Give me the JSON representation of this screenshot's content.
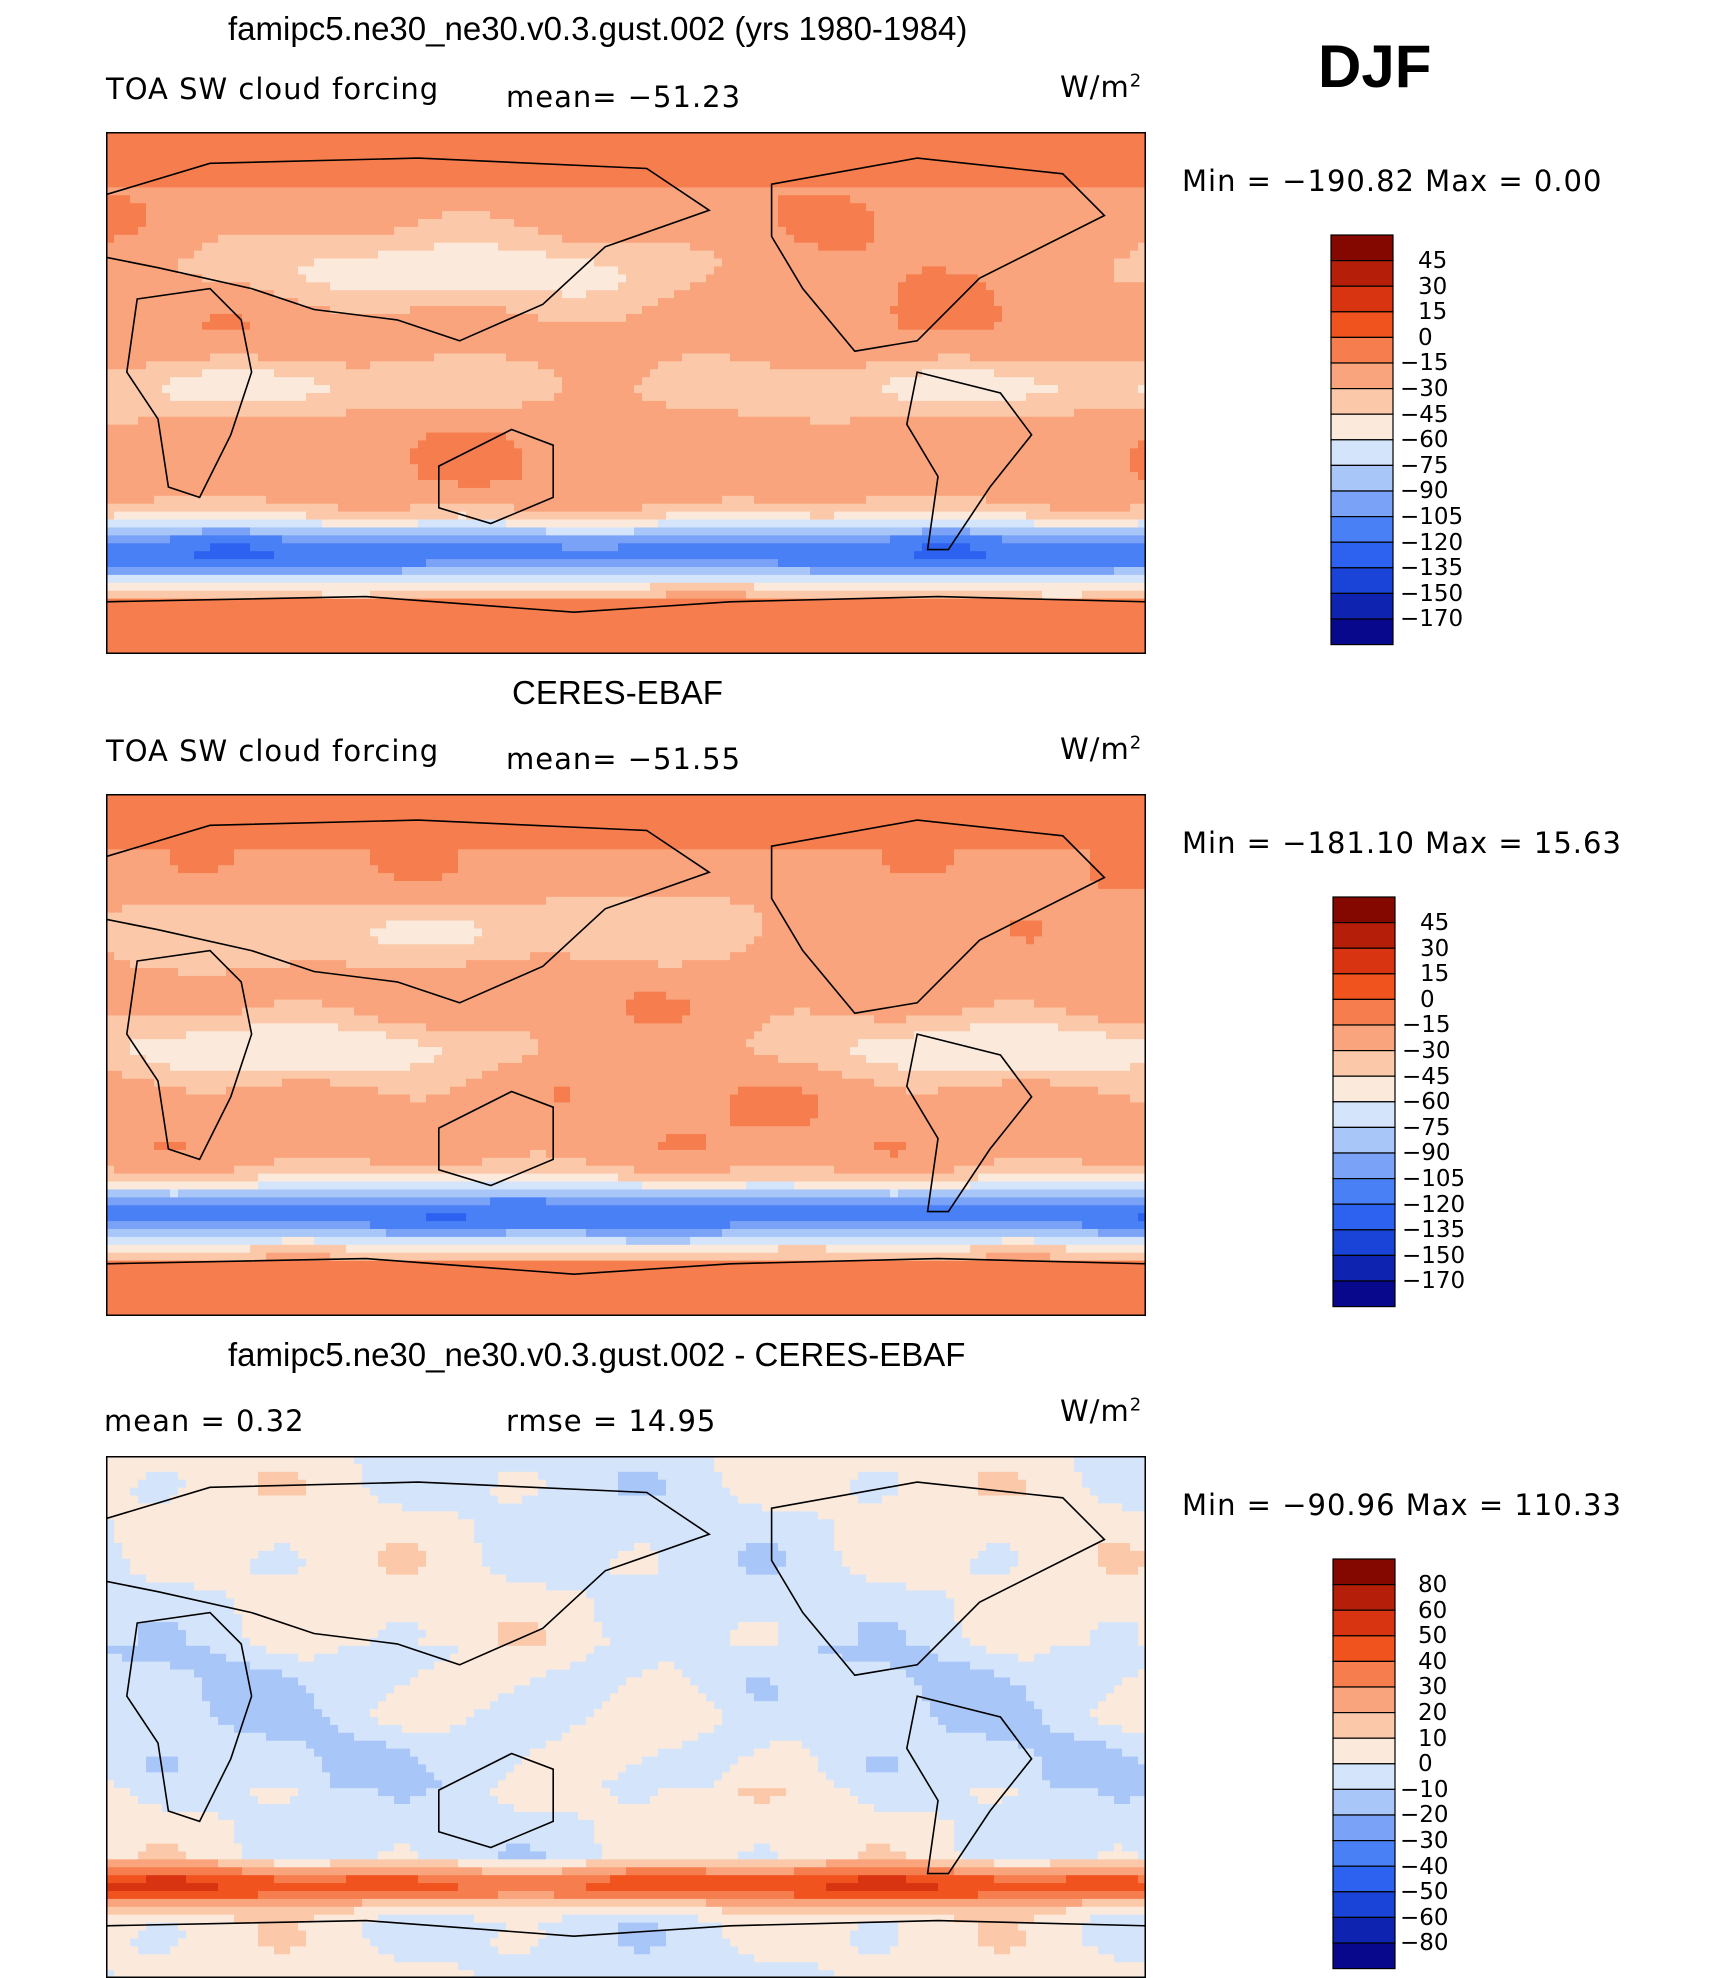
{
  "season": "DJF",
  "unit_text": "W/m",
  "unit_sup": "2",
  "colors": {
    "field": [
      "#08088c",
      "#0e24b0",
      "#1a44d8",
      "#2c62ef",
      "#4a80f5",
      "#7aa3f7",
      "#a9c6f8",
      "#d4e5fb",
      "#fbeadb",
      "#fbc9a9",
      "#f9a47c",
      "#f67d4e",
      "#f1531f",
      "#d93412",
      "#b51e09",
      "#850800"
    ],
    "diff": [
      "#08088c",
      "#0e24b0",
      "#1a44d8",
      "#2c62ef",
      "#4a80f5",
      "#7aa3f7",
      "#a9c6f8",
      "#d4e5fb",
      "#fbeadb",
      "#fbc9a9",
      "#f9a47c",
      "#f67d4e",
      "#f1531f",
      "#d93412",
      "#b51e09",
      "#850800"
    ]
  },
  "panels": [
    {
      "title": "famipc5.ne30_ne30.v0.3.gust.002 (yrs 1980-1984)",
      "variable": "TOA SW cloud forcing",
      "mean_text": "mean=  −51.23",
      "minmax_text": "Min  =  −190.82  Max  =     0.00"
    },
    {
      "title": "CERES-EBAF",
      "variable": "TOA SW cloud forcing",
      "mean_text": "mean=  −51.55",
      "minmax_text": "Min  =  −181.10  Max  =   15.63"
    },
    {
      "title": "famipc5.ne30_ne30.v0.3.gust.002 - CERES-EBAF",
      "mean_text": "mean  =     0.32",
      "rmse_text": "rmse  =    14.95",
      "minmax_text": "Min  =  −90.96  Max  =  110.33"
    }
  ],
  "chart_data": [
    {
      "type": "heatmap",
      "title": "famipc5.ne30_ne30.v0.3.gust.002 (yrs 1980-1984)",
      "variable": "TOA SW cloud forcing",
      "units": "W/m2",
      "mean": -51.23,
      "min": -190.82,
      "max": 0.0,
      "levels": [
        "45",
        "30",
        "15",
        "0",
        "−15",
        "−30",
        "−45",
        "−60",
        "−75",
        "−90",
        "−105",
        "−120",
        "−135",
        "−150",
        "−170"
      ]
    },
    {
      "type": "heatmap",
      "title": "CERES-EBAF",
      "variable": "TOA SW cloud forcing",
      "units": "W/m2",
      "mean": -51.55,
      "min": -181.1,
      "max": 15.63,
      "levels": [
        "45",
        "30",
        "15",
        "0",
        "−15",
        "−30",
        "−45",
        "−60",
        "−75",
        "−90",
        "−105",
        "−120",
        "−135",
        "−150",
        "−170"
      ]
    },
    {
      "type": "heatmap",
      "title": "famipc5.ne30_ne30.v0.3.gust.002 - CERES-EBAF",
      "units": "W/m2",
      "mean": 0.32,
      "rmse": 14.95,
      "min": -90.96,
      "max": 110.33,
      "levels": [
        "80",
        "60",
        "50",
        "40",
        "30",
        "20",
        "10",
        "0",
        "−10",
        "−20",
        "−30",
        "−40",
        "−50",
        "−60",
        "−80"
      ]
    }
  ]
}
